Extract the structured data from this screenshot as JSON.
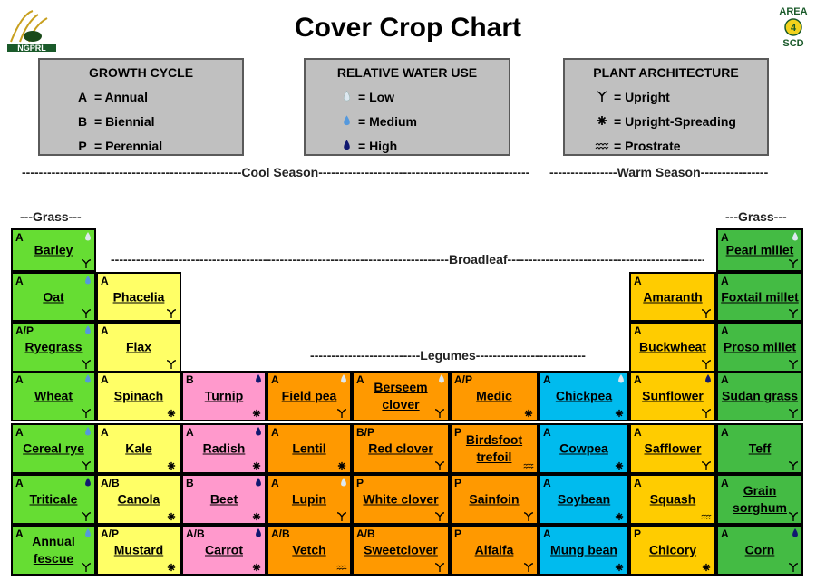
{
  "title": "Cover Crop Chart",
  "colors": {
    "grass": "#66dd33",
    "broadleaf": "#ffff66",
    "brassica": "#ff99cc",
    "legume": "#ff9900",
    "legume_blue": "#00bbee",
    "warm_broadleaf": "#ffcc00",
    "warm_grass": "#44bb44",
    "water_low": "#dde8f0",
    "water_medium": "#5599dd",
    "water_high": "#101870"
  },
  "legends": {
    "growth_cycle": {
      "title": "GROWTH CYCLE",
      "rows": [
        {
          "symbol": "A",
          "label": "=  Annual"
        },
        {
          "symbol": "B",
          "label": "=  Biennial"
        },
        {
          "symbol": "P",
          "label": "=  Perennial"
        }
      ]
    },
    "water_use": {
      "title": "RELATIVE WATER USE",
      "rows": [
        {
          "icon": "water-low-drop-icon",
          "label": "=  Low"
        },
        {
          "icon": "water-medium-drop-icon",
          "label": "=  Medium"
        },
        {
          "icon": "water-high-drop-icon",
          "label": "=  High"
        }
      ]
    },
    "architecture": {
      "title": "PLANT ARCHITECTURE",
      "rows": [
        {
          "icon": "upright-icon",
          "label": "=  Upright"
        },
        {
          "icon": "upright-spreading-icon",
          "label": "=  Upright-Spreading"
        },
        {
          "icon": "prostrate-icon",
          "label": "=  Prostrate"
        }
      ]
    }
  },
  "dividers": {
    "cool": "----------------------------------------------------Cool Season------------------------------------------------------",
    "warm": "----------------Warm Season----------------",
    "grass_left": "---Grass---",
    "grass_right": "---Grass---",
    "broadleaf": "--------------------------------------------------------------------------------Broadleaf--------------------------------------------------------------------------------",
    "legumes": "--------------------------Legumes--------------------------"
  },
  "crops": [
    {
      "name": "Barley",
      "cycle": "A",
      "water": "low",
      "arch": "upright",
      "group": "grass"
    },
    {
      "name": "Oat",
      "cycle": "A",
      "water": "medium",
      "arch": "upright",
      "group": "grass"
    },
    {
      "name": "Ryegrass",
      "cycle": "A/P",
      "water": "medium",
      "arch": "upright",
      "group": "grass"
    },
    {
      "name": "Wheat",
      "cycle": "A",
      "water": "medium",
      "arch": "upright",
      "group": "grass"
    },
    {
      "name": "Cereal rye",
      "cycle": "A",
      "water": "medium",
      "arch": "upright",
      "group": "grass"
    },
    {
      "name": "Triticale",
      "cycle": "A",
      "water": "high",
      "arch": "upright",
      "group": "grass"
    },
    {
      "name": "Annual fescue",
      "cycle": "A",
      "water": "medium",
      "arch": "upright",
      "group": "grass"
    },
    {
      "name": "Phacelia",
      "cycle": "A",
      "water": "",
      "arch": "upright",
      "group": "broadleaf"
    },
    {
      "name": "Flax",
      "cycle": "A",
      "water": "",
      "arch": "upright",
      "group": "broadleaf"
    },
    {
      "name": "Spinach",
      "cycle": "A",
      "water": "",
      "arch": "upright-spreading",
      "group": "broadleaf"
    },
    {
      "name": "Kale",
      "cycle": "A",
      "water": "",
      "arch": "upright-spreading",
      "group": "broadleaf"
    },
    {
      "name": "Canola",
      "cycle": "A/B",
      "water": "",
      "arch": "upright-spreading",
      "group": "broadleaf"
    },
    {
      "name": "Mustard",
      "cycle": "A/P",
      "water": "",
      "arch": "upright-spreading",
      "group": "broadleaf"
    },
    {
      "name": "Turnip",
      "cycle": "B",
      "water": "high",
      "arch": "upright-spreading",
      "group": "brassica"
    },
    {
      "name": "Radish",
      "cycle": "A",
      "water": "high",
      "arch": "upright-spreading",
      "group": "brassica"
    },
    {
      "name": "Beet",
      "cycle": "B",
      "water": "high",
      "arch": "upright-spreading",
      "group": "brassica"
    },
    {
      "name": "Carrot",
      "cycle": "A/B",
      "water": "high",
      "arch": "upright-spreading",
      "group": "brassica"
    },
    {
      "name": "Field pea",
      "cycle": "A",
      "water": "low",
      "arch": "upright",
      "group": "legume"
    },
    {
      "name": "Lentil",
      "cycle": "A",
      "water": "",
      "arch": "upright-spreading",
      "group": "legume"
    },
    {
      "name": "Lupin",
      "cycle": "A",
      "water": "low",
      "arch": "upright",
      "group": "legume"
    },
    {
      "name": "Vetch",
      "cycle": "A/B",
      "water": "",
      "arch": "prostrate",
      "group": "legume"
    },
    {
      "name": "Berseem clover",
      "cycle": "A",
      "water": "low",
      "arch": "upright",
      "group": "legume"
    },
    {
      "name": "Red clover",
      "cycle": "B/P",
      "water": "",
      "arch": "upright",
      "group": "legume"
    },
    {
      "name": "White clover",
      "cycle": "P",
      "water": "",
      "arch": "upright",
      "group": "legume"
    },
    {
      "name": "Sweetclover",
      "cycle": "A/B",
      "water": "",
      "arch": "upright",
      "group": "legume"
    },
    {
      "name": "Medic",
      "cycle": "A/P",
      "water": "",
      "arch": "upright-spreading",
      "group": "legume"
    },
    {
      "name": "Birdsfoot trefoil",
      "cycle": "P",
      "water": "",
      "arch": "prostrate",
      "group": "legume"
    },
    {
      "name": "Sainfoin",
      "cycle": "P",
      "water": "",
      "arch": "upright",
      "group": "legume"
    },
    {
      "name": "Alfalfa",
      "cycle": "P",
      "water": "",
      "arch": "upright",
      "group": "legume"
    },
    {
      "name": "Chickpea",
      "cycle": "A",
      "water": "low",
      "arch": "upright-spreading",
      "group": "legume_blue"
    },
    {
      "name": "Cowpea",
      "cycle": "A",
      "water": "",
      "arch": "upright-spreading",
      "group": "legume_blue"
    },
    {
      "name": "Soybean",
      "cycle": "A",
      "water": "",
      "arch": "upright-spreading",
      "group": "legume_blue"
    },
    {
      "name": "Mung bean",
      "cycle": "A",
      "water": "",
      "arch": "upright-spreading",
      "group": "legume_blue"
    },
    {
      "name": "Amaranth",
      "cycle": "A",
      "water": "",
      "arch": "upright",
      "group": "warm_broadleaf"
    },
    {
      "name": "Buckwheat",
      "cycle": "A",
      "water": "",
      "arch": "upright",
      "group": "warm_broadleaf"
    },
    {
      "name": "Sunflower",
      "cycle": "A",
      "water": "high",
      "arch": "upright",
      "group": "warm_broadleaf"
    },
    {
      "name": "Safflower",
      "cycle": "A",
      "water": "",
      "arch": "upright",
      "group": "warm_broadleaf"
    },
    {
      "name": "Squash",
      "cycle": "A",
      "water": "",
      "arch": "prostrate",
      "group": "warm_broadleaf"
    },
    {
      "name": "Chicory",
      "cycle": "P",
      "water": "",
      "arch": "upright-spreading",
      "group": "warm_broadleaf"
    },
    {
      "name": "Pearl millet",
      "cycle": "A",
      "water": "low",
      "arch": "upright",
      "group": "warm_grass"
    },
    {
      "name": "Foxtail millet",
      "cycle": "A",
      "water": "",
      "arch": "upright",
      "group": "warm_grass"
    },
    {
      "name": "Proso millet",
      "cycle": "A",
      "water": "",
      "arch": "upright",
      "group": "warm_grass"
    },
    {
      "name": "Sudan grass",
      "cycle": "A",
      "water": "",
      "arch": "upright",
      "group": "warm_grass"
    },
    {
      "name": "Teff",
      "cycle": "A",
      "water": "",
      "arch": "upright",
      "group": "warm_grass"
    },
    {
      "name": "Grain sorghum",
      "cycle": "A",
      "water": "",
      "arch": "upright",
      "group": "warm_grass"
    },
    {
      "name": "Corn",
      "cycle": "A",
      "water": "high",
      "arch": "upright",
      "group": "warm_grass"
    }
  ],
  "logos": {
    "left_text": "NGPRL",
    "right_text_top": "AREA",
    "right_text_num": "4",
    "right_text_bottom": "SCD"
  }
}
